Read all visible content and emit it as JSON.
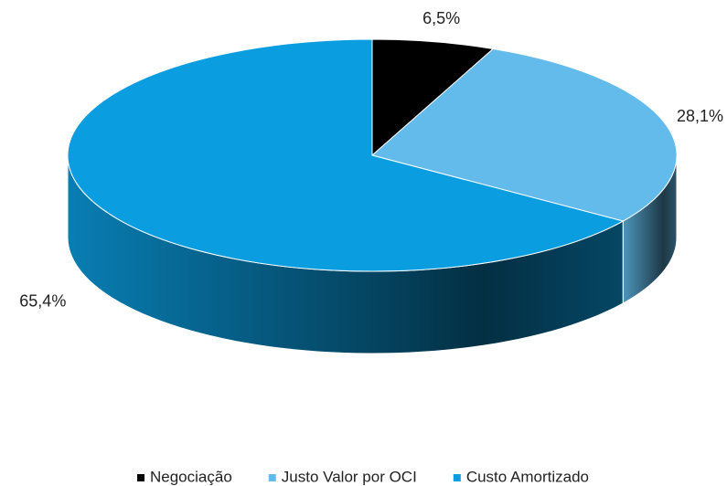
{
  "chart_data": {
    "type": "pie3d",
    "categories": [
      "Negociação",
      "Justo Valor por OCI",
      "Custo Amortizado"
    ],
    "values": [
      6.5,
      28.1,
      65.4
    ],
    "value_labels": [
      "6,5%",
      "28,1%",
      "65,4%"
    ],
    "colors": [
      "#000000",
      "#62bbea",
      "#0a9de0"
    ],
    "legend": "bottom"
  }
}
